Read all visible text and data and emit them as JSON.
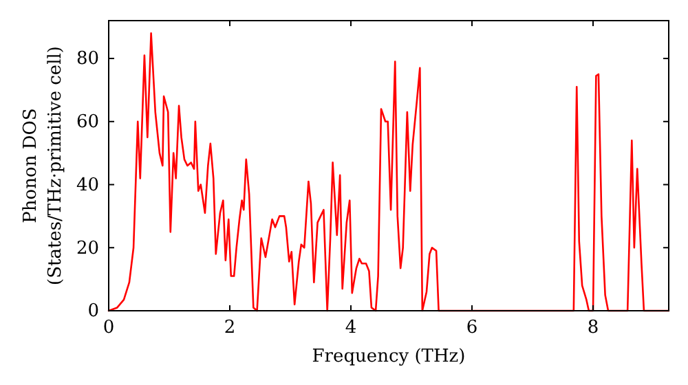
{
  "chart_data": {
    "type": "line",
    "xlabel": "Frequency (THz)",
    "ylabel": "Phonon DOS\n(States/THz·primitive cell)",
    "xlim": [
      0,
      9.25
    ],
    "ylim": [
      0,
      92
    ],
    "xticks": [
      0,
      2,
      4,
      6,
      8
    ],
    "yticks": [
      0,
      20,
      40,
      60,
      80
    ],
    "grid": false,
    "x": [
      0,
      0.14,
      0.25,
      0.34,
      0.41,
      0.48,
      0.52,
      0.59,
      0.64,
      0.7,
      0.77,
      0.84,
      0.89,
      0.91,
      0.98,
      1.02,
      1.07,
      1.11,
      1.16,
      1.2,
      1.25,
      1.3,
      1.36,
      1.41,
      1.43,
      1.48,
      1.52,
      1.59,
      1.64,
      1.68,
      1.73,
      1.77,
      1.84,
      1.89,
      1.93,
      1.98,
      2.02,
      2.07,
      2.11,
      2.16,
      2.2,
      2.23,
      2.27,
      2.32,
      2.39,
      2.45,
      2.52,
      2.59,
      2.7,
      2.75,
      2.82,
      2.9,
      2.93,
      2.98,
      3.02,
      3.07,
      3.14,
      3.18,
      3.23,
      3.3,
      3.34,
      3.39,
      3.45,
      3.5,
      3.55,
      3.61,
      3.66,
      3.7,
      3.77,
      3.82,
      3.86,
      3.93,
      3.98,
      4.02,
      4.09,
      4.14,
      4.18,
      4.25,
      4.3,
      4.34,
      4.41,
      4.45,
      4.5,
      4.57,
      4.61,
      4.66,
      4.73,
      4.77,
      4.82,
      4.86,
      4.93,
      4.98,
      5.02,
      5.09,
      5.14,
      5.18,
      5.25,
      5.3,
      5.34,
      5.41,
      5.45,
      7.68,
      7.73,
      7.77,
      7.82,
      7.89,
      7.93,
      8,
      8.05,
      8.09,
      8.14,
      8.2,
      8.25,
      8.57,
      8.64,
      8.68,
      8.73,
      8.8,
      8.84,
      9.25
    ],
    "series": [
      {
        "color": "#ff0000",
        "values": [
          0,
          1,
          3.5,
          9,
          20,
          60,
          42,
          81,
          55,
          88,
          63,
          50,
          46,
          68,
          63,
          25,
          50,
          42,
          65,
          55,
          48,
          46,
          47,
          45,
          60,
          38,
          40,
          31,
          46,
          53,
          42,
          18,
          31,
          35,
          16,
          29,
          11,
          11,
          20,
          29,
          35,
          32,
          48,
          37,
          1,
          0,
          23,
          17,
          29,
          26.5,
          30,
          30,
          26.5,
          15.6,
          18.7,
          2,
          15.6,
          21,
          20,
          41,
          34,
          9,
          28,
          30,
          32,
          0,
          23,
          47,
          24,
          43,
          7,
          28,
          35,
          5.6,
          13.5,
          16.5,
          15,
          15,
          12.6,
          1,
          0,
          11,
          64,
          60,
          60,
          32,
          79,
          30,
          13.5,
          20,
          63,
          38,
          52.6,
          66.5,
          77,
          0,
          6,
          18,
          20,
          19,
          0,
          0,
          71,
          22,
          8,
          3.5,
          0,
          0,
          74.5,
          75,
          30,
          5,
          0,
          0,
          54,
          20,
          45,
          15,
          0,
          0
        ]
      }
    ]
  }
}
